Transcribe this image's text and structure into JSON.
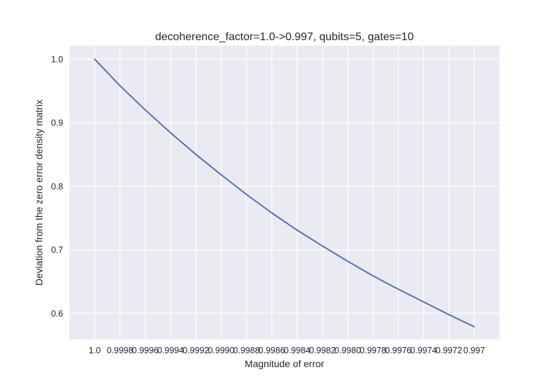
{
  "chart_data": {
    "type": "line",
    "title": "decoherence_factor=1.0->0.997, qubits=5, gates=10",
    "xlabel": "Magnitude of error",
    "ylabel": "Deviation from the zero error density matrix",
    "x_ticks": [
      {
        "value": 1.0,
        "label": "1.0"
      },
      {
        "value": 0.9998,
        "label": "0.9998"
      },
      {
        "value": 0.9996,
        "label": "0.9996"
      },
      {
        "value": 0.9994,
        "label": "0.9994"
      },
      {
        "value": 0.9992,
        "label": "0.9992"
      },
      {
        "value": 0.999,
        "label": "0.9990"
      },
      {
        "value": 0.9988,
        "label": "0.9988"
      },
      {
        "value": 0.9986,
        "label": "0.9986"
      },
      {
        "value": 0.9984,
        "label": "0.9984"
      },
      {
        "value": 0.9982,
        "label": "0.9982"
      },
      {
        "value": 0.998,
        "label": "0.9980"
      },
      {
        "value": 0.9978,
        "label": "0.9978"
      },
      {
        "value": 0.9976,
        "label": "0.9976"
      },
      {
        "value": 0.9974,
        "label": "0.9974"
      },
      {
        "value": 0.9972,
        "label": "0.9972"
      },
      {
        "value": 0.997,
        "label": "0.997"
      }
    ],
    "y_ticks": [
      {
        "value": 0.6,
        "label": "0.6"
      },
      {
        "value": 0.7,
        "label": "0.7"
      },
      {
        "value": 0.8,
        "label": "0.8"
      },
      {
        "value": 0.9,
        "label": "0.9"
      },
      {
        "value": 1.0,
        "label": "1.0"
      }
    ],
    "xlim": [
      1.0002,
      0.9968
    ],
    "ylim": [
      0.559,
      1.021
    ],
    "grid": true,
    "background": "#eaeaf2",
    "grid_color": "#ffffff",
    "line_color": "#4c72b0",
    "series": [
      {
        "x": [
          1.0,
          0.9998,
          0.9996,
          0.9994,
          0.9992,
          0.999,
          0.9988,
          0.9986,
          0.9984,
          0.9982,
          0.998,
          0.9978,
          0.9976,
          0.9974,
          0.9972,
          0.997
        ],
        "y": [
          1.0,
          0.958,
          0.92,
          0.884,
          0.85,
          0.818,
          0.787,
          0.758,
          0.731,
          0.706,
          0.682,
          0.659,
          0.638,
          0.618,
          0.598,
          0.579
        ]
      }
    ]
  }
}
